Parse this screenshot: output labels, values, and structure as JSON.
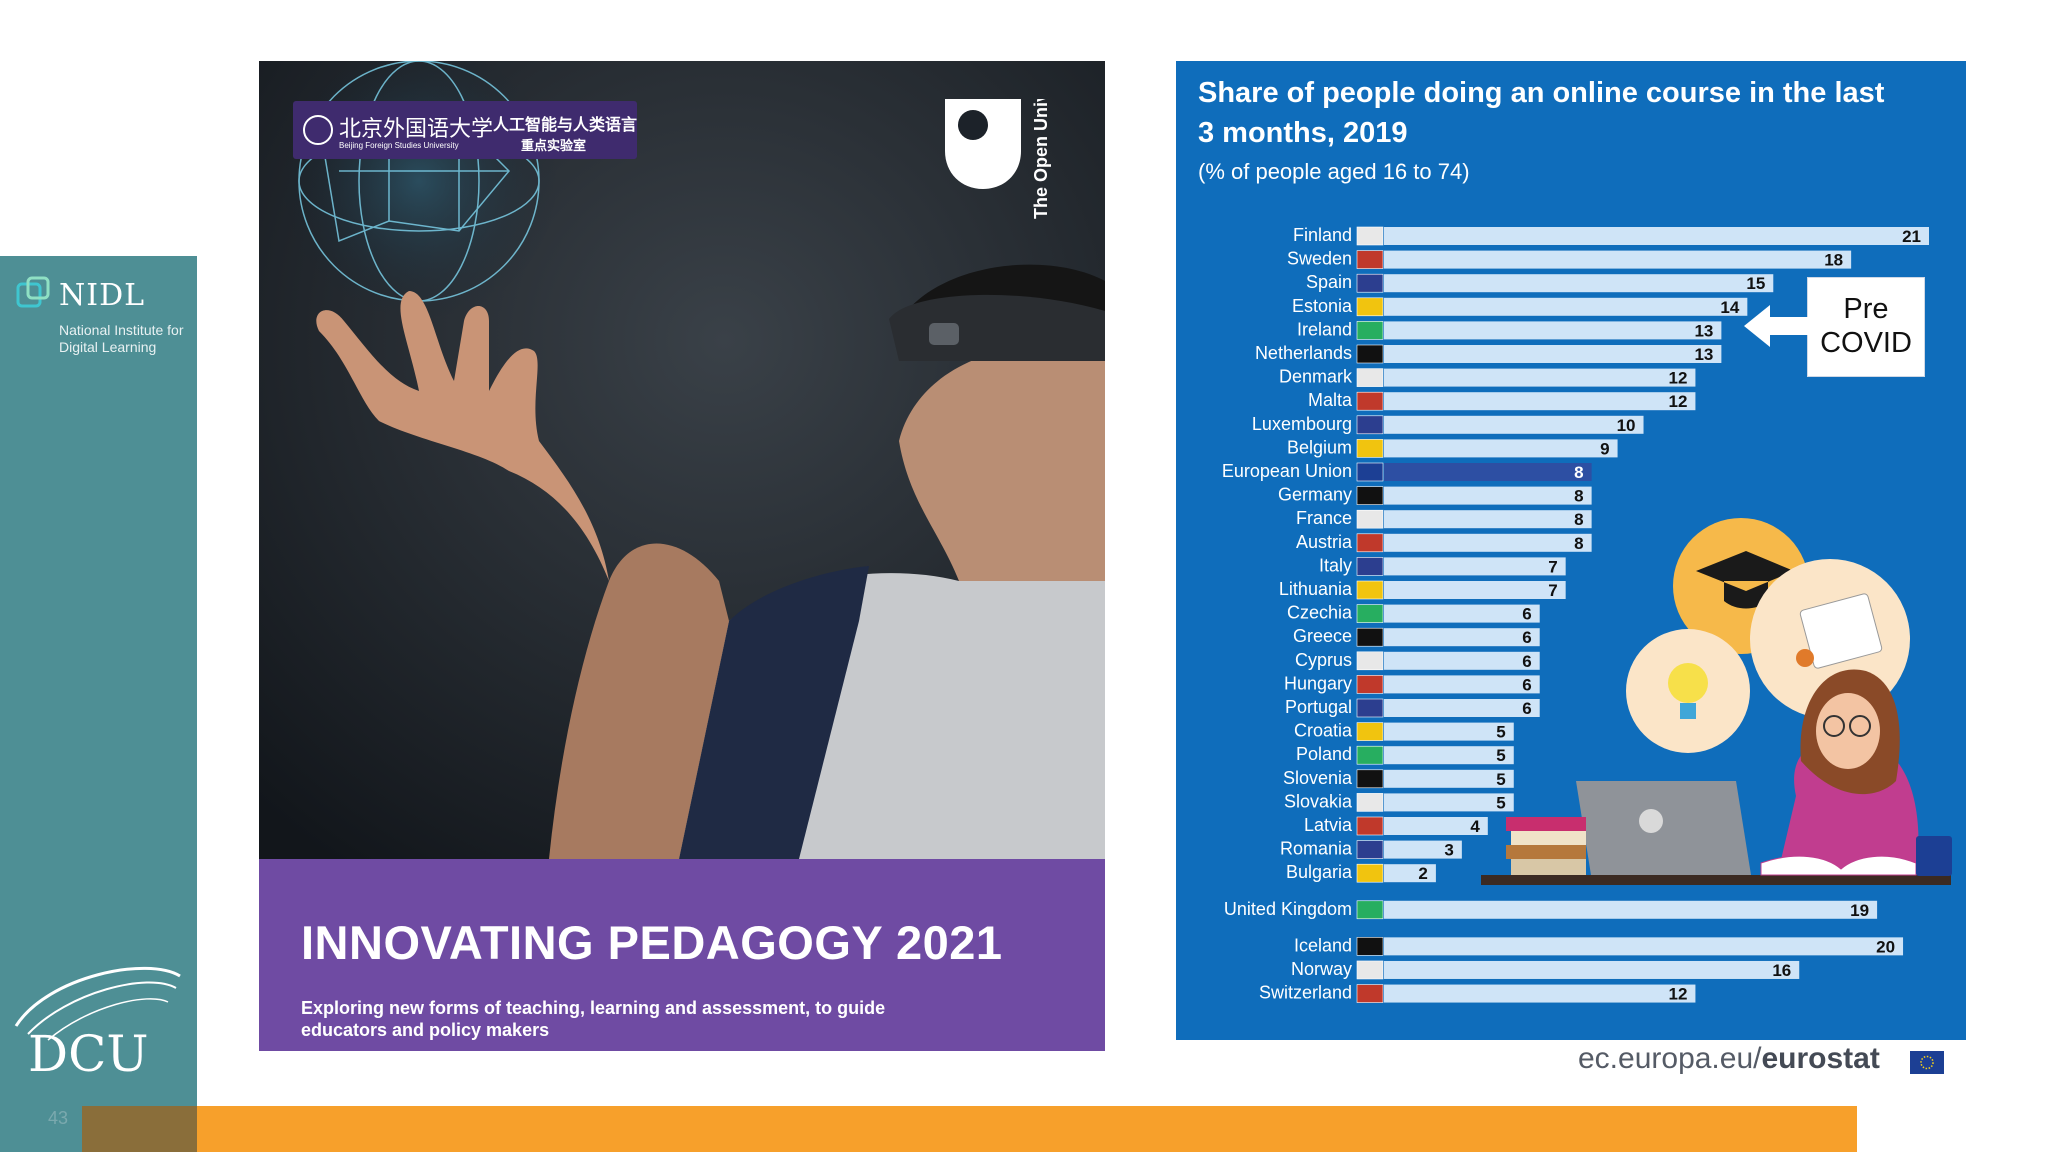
{
  "sidebar": {
    "org_name": "NIDL",
    "org_subtitle": "National Institute for Digital Learning",
    "university_logo_text": "DCU",
    "slide_number": "43"
  },
  "cover": {
    "title": "INNOVATING PEDAGOGY 2021",
    "subtitle": "Exploring new forms of teaching, learning and assessment, to guide educators and policy makers",
    "partner_name_cn": "北京外国语大学",
    "partner_name_en": "Beijing Foreign Studies University",
    "partner_lab_line1": "人工智能与人类语言",
    "partner_lab_line2": "重点实验室",
    "publisher": "The Open University"
  },
  "callout": {
    "text_line1": "Pre",
    "text_line2": "COVID"
  },
  "source": {
    "prefix": "ec.europa.eu/",
    "bold": "eurostat"
  },
  "colors": {
    "bar_default": "#cfe4f7",
    "bar_eu": "#2d4fa3",
    "panel_bg": "#0f6dbb"
  },
  "chart_data": {
    "type": "bar",
    "orientation": "horizontal",
    "title": "Share of people doing an online course in the last 3 months, 2019",
    "subtitle": "(% of people aged 16 to 74)",
    "xlim": [
      0,
      21
    ],
    "categories": [
      "Finland",
      "Sweden",
      "Spain",
      "Estonia",
      "Ireland",
      "Netherlands",
      "Denmark",
      "Malta",
      "Luxembourg",
      "Belgium",
      "European Union",
      "Germany",
      "France",
      "Austria",
      "Italy",
      "Lithuania",
      "Czechia",
      "Greece",
      "Cyprus",
      "Hungary",
      "Portugal",
      "Croatia",
      "Poland",
      "Slovenia",
      "Slovakia",
      "Latvia",
      "Romania",
      "Bulgaria",
      "United Kingdom",
      "Iceland",
      "Norway",
      "Switzerland"
    ],
    "values": [
      21,
      18,
      15,
      14,
      13,
      13,
      12,
      12,
      10,
      9,
      8,
      8,
      8,
      8,
      7,
      7,
      6,
      6,
      6,
      6,
      6,
      5,
      5,
      5,
      5,
      4,
      3,
      2,
      19,
      20,
      16,
      12
    ],
    "highlight": "European Union",
    "annotation": "Pre COVID"
  }
}
